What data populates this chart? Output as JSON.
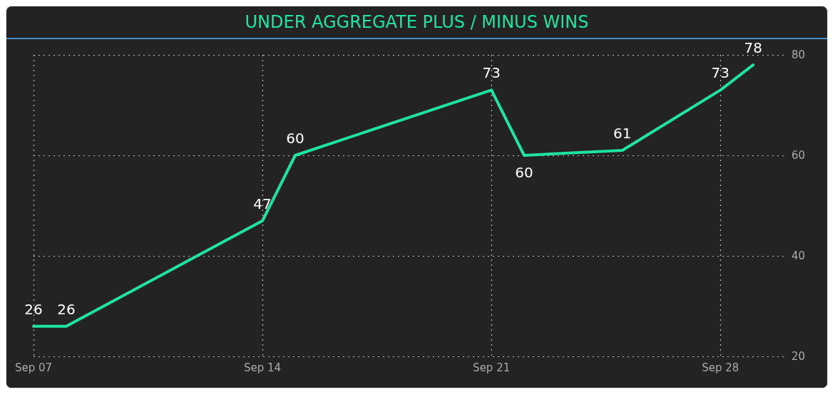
{
  "chart_data": {
    "type": "line",
    "title": "UNDER AGGREGATE PLUS / MINUS WINS",
    "x": [
      "--09-07",
      "--09-08",
      "--09-14",
      "--09-15",
      "--09-21",
      "--09-22",
      "--09-25",
      "--09-28",
      "--09-29"
    ],
    "series": [
      {
        "color": "#1de4a2",
        "values": [
          26,
          26,
          47,
          60,
          73,
          60,
          61,
          73,
          78
        ]
      }
    ],
    "xlim": [
      "--09-07",
      "--09-30"
    ],
    "xticks": [
      {
        "value": "--09-07",
        "label": "Sep 07"
      },
      {
        "value": "--09-14",
        "label": "Sep 14"
      },
      {
        "value": "--09-21",
        "label": "Sep 21"
      },
      {
        "value": "--09-28",
        "label": "Sep 28"
      }
    ],
    "ylim": [
      20,
      80
    ],
    "yticks": [
      20,
      40,
      60,
      80
    ],
    "grid": true,
    "data_labels": true,
    "marker": "none",
    "line_style": "solid"
  }
}
